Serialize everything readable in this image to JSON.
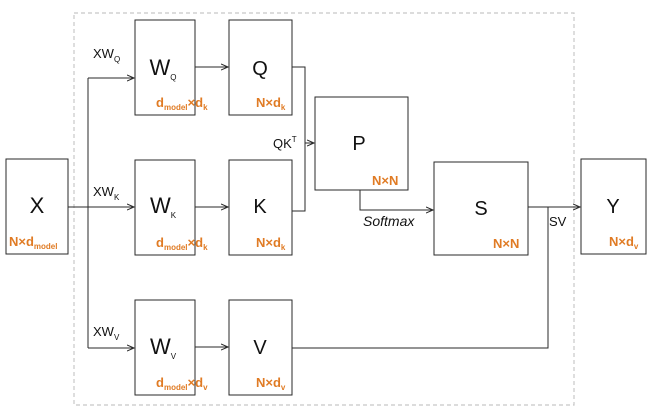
{
  "colors": {
    "accent": "#e07b24",
    "stroke": "#2a2a2a",
    "frame": "#c8c8c8"
  },
  "nodes": {
    "x": {
      "main": "X",
      "dim_a": "N×d",
      "dim_a_sub": "model",
      "dim_b": "",
      "dim_b_sub": ""
    },
    "wq": {
      "main": "W",
      "main_sub": "Q",
      "dim_a": "d",
      "dim_a_sub": "model",
      "dim_b": "×d",
      "dim_b_sub": "k"
    },
    "wk": {
      "main": "W",
      "main_sub": "K",
      "dim_a": "d",
      "dim_a_sub": "model",
      "dim_b": "×d",
      "dim_b_sub": "k"
    },
    "wv": {
      "main": "W",
      "main_sub": "V",
      "dim_a": "d",
      "dim_a_sub": "model",
      "dim_b": "×d",
      "dim_b_sub": "v"
    },
    "q": {
      "main": "Q",
      "dim_a": "N×d",
      "dim_a_sub": "k"
    },
    "k": {
      "main": "K",
      "dim_a": "N×d",
      "dim_a_sub": "k"
    },
    "v": {
      "main": "V",
      "dim_a": "N×d",
      "dim_a_sub": "v"
    },
    "p": {
      "main": "P",
      "dim_a": "N×N"
    },
    "s": {
      "main": "S",
      "dim_a": "N×N"
    },
    "y": {
      "main": "Y",
      "dim_a": "N×d",
      "dim_a_sub": "v"
    }
  },
  "edge_labels": {
    "xwq": "XW",
    "xwq_sub": "Q",
    "xwk": "XW",
    "xwk_sub": "K",
    "xwv": "XW",
    "xwv_sub": "V",
    "qkt": "QK",
    "qkt_sup": "T",
    "softmax": "Softmax",
    "sv": "SV"
  }
}
